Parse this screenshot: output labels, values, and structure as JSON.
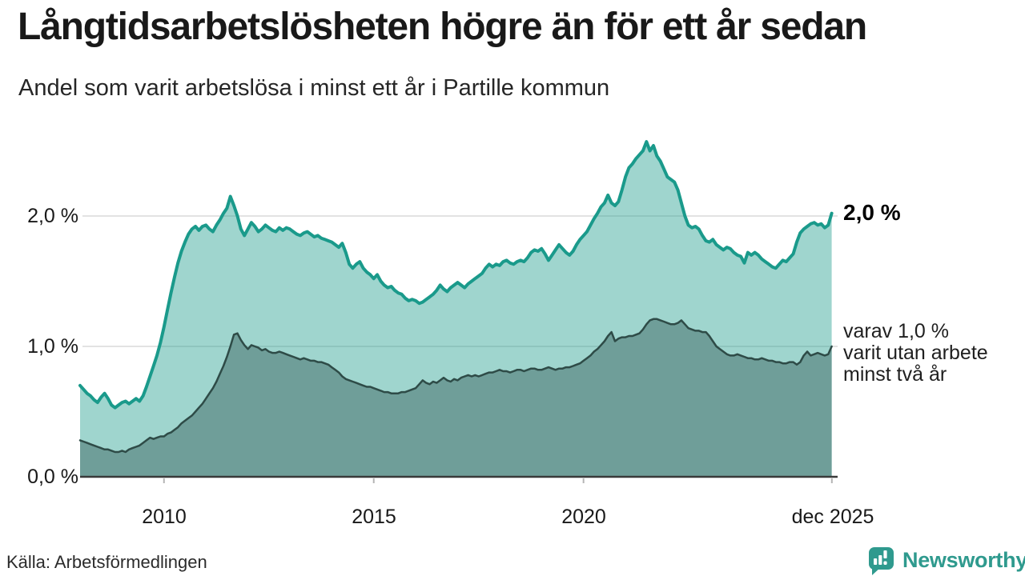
{
  "title": "Långtidsarbetslösheten högre än för ett år sedan",
  "subtitle": "Andel som varit arbetslösa i minst ett år i Partille kommun",
  "source": "Källa: Arbetsförmedlingen",
  "brand": {
    "name": "Newsworthy",
    "color": "#2f9a8e"
  },
  "annotations": {
    "end_value_primary": "2,0 %",
    "secondary_note_lines": [
      "varav 1,0 %",
      "varit utan arbete",
      "minst två år"
    ]
  },
  "y_axis": {
    "labels": [
      "2,0 %",
      "1,0 %",
      "0,0 %"
    ],
    "values": [
      2.0,
      1.0,
      0.0
    ]
  },
  "x_axis": {
    "labels": [
      "2010",
      "2015",
      "2020",
      "dec 2025"
    ],
    "values": [
      2010,
      2015,
      2020,
      2025.92
    ]
  },
  "colors": {
    "gridline": "#e3e3e3",
    "axis": "#3a3a3a",
    "tick": "#b5b5b5"
  },
  "chart_data": {
    "type": "area",
    "title": "Långtidsarbetslösheten högre än för ett år sedan",
    "subtitle": "Andel som varit arbetslösa i minst ett år i Partille kommun",
    "x_unit": "year-month",
    "x_range": [
      2008,
      2026
    ],
    "ylim": [
      0,
      2.65
    ],
    "grid": "horizontal",
    "legend": "none",
    "y_gridlines": [
      1.0,
      2.0
    ],
    "series": [
      {
        "name": "arbetslösa minst ett år",
        "end_value": 2.0,
        "line_color": "#1a9a8b",
        "line_width": 4,
        "fill_color": "#1a9a8b",
        "fill_opacity": 0.42,
        "start_year": 2008,
        "monthly_values": [
          0.7,
          0.67,
          0.64,
          0.62,
          0.59,
          0.57,
          0.61,
          0.64,
          0.6,
          0.55,
          0.53,
          0.55,
          0.57,
          0.58,
          0.56,
          0.58,
          0.6,
          0.58,
          0.62,
          0.69,
          0.77,
          0.85,
          0.93,
          1.03,
          1.15,
          1.28,
          1.41,
          1.53,
          1.64,
          1.73,
          1.8,
          1.86,
          1.9,
          1.92,
          1.89,
          1.92,
          1.93,
          1.9,
          1.88,
          1.93,
          1.97,
          2.02,
          2.06,
          2.15,
          2.08,
          2.0,
          1.9,
          1.85,
          1.9,
          1.95,
          1.92,
          1.88,
          1.9,
          1.93,
          1.91,
          1.89,
          1.88,
          1.91,
          1.89,
          1.91,
          1.9,
          1.88,
          1.86,
          1.85,
          1.87,
          1.88,
          1.86,
          1.84,
          1.85,
          1.83,
          1.82,
          1.81,
          1.8,
          1.78,
          1.76,
          1.79,
          1.72,
          1.63,
          1.6,
          1.63,
          1.65,
          1.6,
          1.57,
          1.55,
          1.52,
          1.55,
          1.5,
          1.47,
          1.45,
          1.46,
          1.43,
          1.41,
          1.4,
          1.37,
          1.35,
          1.36,
          1.35,
          1.33,
          1.34,
          1.36,
          1.38,
          1.4,
          1.43,
          1.47,
          1.44,
          1.42,
          1.45,
          1.47,
          1.49,
          1.47,
          1.45,
          1.48,
          1.5,
          1.52,
          1.54,
          1.56,
          1.6,
          1.63,
          1.61,
          1.63,
          1.62,
          1.65,
          1.66,
          1.64,
          1.63,
          1.65,
          1.66,
          1.65,
          1.68,
          1.72,
          1.74,
          1.73,
          1.75,
          1.71,
          1.66,
          1.7,
          1.74,
          1.78,
          1.75,
          1.72,
          1.7,
          1.73,
          1.78,
          1.82,
          1.85,
          1.88,
          1.93,
          1.98,
          2.02,
          2.07,
          2.1,
          2.16,
          2.1,
          2.08,
          2.11,
          2.2,
          2.3,
          2.37,
          2.4,
          2.44,
          2.47,
          2.5,
          2.57,
          2.5,
          2.54,
          2.46,
          2.42,
          2.36,
          2.3,
          2.28,
          2.26,
          2.2,
          2.1,
          2.0,
          1.93,
          1.91,
          1.92,
          1.9,
          1.85,
          1.81,
          1.8,
          1.82,
          1.78,
          1.76,
          1.74,
          1.76,
          1.75,
          1.72,
          1.7,
          1.69,
          1.64,
          1.72,
          1.7,
          1.72,
          1.7,
          1.67,
          1.65,
          1.63,
          1.61,
          1.6,
          1.63,
          1.66,
          1.65,
          1.68,
          1.71,
          1.8,
          1.87,
          1.9,
          1.92,
          1.94,
          1.95,
          1.93,
          1.94,
          1.91,
          1.93,
          2.02
        ]
      },
      {
        "name": "utan arbete minst två år",
        "end_value": 1.0,
        "line_color": "#2e4b47",
        "line_width": 2.5,
        "fill_color": "#6f9e99",
        "fill_opacity": 1,
        "start_year": 2008,
        "monthly_values": [
          0.28,
          0.27,
          0.26,
          0.25,
          0.24,
          0.23,
          0.22,
          0.21,
          0.21,
          0.2,
          0.19,
          0.19,
          0.2,
          0.19,
          0.21,
          0.22,
          0.23,
          0.24,
          0.26,
          0.28,
          0.3,
          0.29,
          0.3,
          0.31,
          0.31,
          0.33,
          0.34,
          0.36,
          0.38,
          0.41,
          0.43,
          0.45,
          0.47,
          0.5,
          0.53,
          0.56,
          0.6,
          0.64,
          0.68,
          0.73,
          0.79,
          0.85,
          0.92,
          1.0,
          1.09,
          1.1,
          1.05,
          1.01,
          0.98,
          1.01,
          1.0,
          0.99,
          0.97,
          0.98,
          0.96,
          0.95,
          0.95,
          0.96,
          0.95,
          0.94,
          0.93,
          0.92,
          0.91,
          0.9,
          0.91,
          0.9,
          0.89,
          0.89,
          0.88,
          0.88,
          0.87,
          0.86,
          0.84,
          0.82,
          0.8,
          0.77,
          0.75,
          0.74,
          0.73,
          0.72,
          0.71,
          0.7,
          0.69,
          0.69,
          0.68,
          0.67,
          0.66,
          0.65,
          0.65,
          0.64,
          0.64,
          0.64,
          0.65,
          0.65,
          0.66,
          0.67,
          0.68,
          0.71,
          0.74,
          0.72,
          0.71,
          0.73,
          0.72,
          0.74,
          0.76,
          0.74,
          0.73,
          0.75,
          0.74,
          0.76,
          0.77,
          0.78,
          0.77,
          0.78,
          0.77,
          0.78,
          0.79,
          0.8,
          0.8,
          0.81,
          0.82,
          0.81,
          0.81,
          0.8,
          0.81,
          0.82,
          0.82,
          0.81,
          0.82,
          0.83,
          0.83,
          0.82,
          0.82,
          0.83,
          0.84,
          0.83,
          0.82,
          0.83,
          0.83,
          0.84,
          0.84,
          0.85,
          0.86,
          0.87,
          0.89,
          0.91,
          0.93,
          0.96,
          0.98,
          1.01,
          1.04,
          1.08,
          1.11,
          1.04,
          1.06,
          1.07,
          1.07,
          1.08,
          1.08,
          1.09,
          1.1,
          1.13,
          1.17,
          1.2,
          1.21,
          1.21,
          1.2,
          1.19,
          1.18,
          1.17,
          1.17,
          1.18,
          1.2,
          1.17,
          1.14,
          1.13,
          1.12,
          1.12,
          1.11,
          1.11,
          1.08,
          1.04,
          1.0,
          0.98,
          0.96,
          0.94,
          0.93,
          0.93,
          0.94,
          0.93,
          0.92,
          0.91,
          0.91,
          0.9,
          0.9,
          0.91,
          0.9,
          0.89,
          0.89,
          0.88,
          0.88,
          0.87,
          0.87,
          0.88,
          0.88,
          0.86,
          0.88,
          0.93,
          0.96,
          0.93,
          0.94,
          0.95,
          0.94,
          0.93,
          0.94,
          1.0
        ]
      }
    ]
  }
}
